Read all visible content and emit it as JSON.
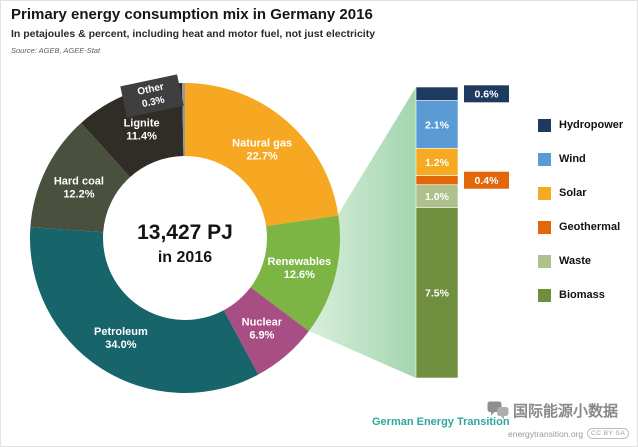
{
  "header": {
    "title": "Primary energy consumption mix in Germany 2016",
    "subtitle": "In petajoules & percent, including heat and motor fuel, not just electricity",
    "source": "Source: AGEB, AGEE-Stat"
  },
  "chart_data": {
    "type": "pie",
    "variant": "donut-with-breakout-bar",
    "title": "Primary energy consumption mix in Germany 2016",
    "center_label": {
      "value": "13,427 PJ",
      "sub": "in 2016"
    },
    "beam": {
      "from": "#d9efdc",
      "to": "#a3d5ae"
    },
    "donut": {
      "unit": "%",
      "slices": [
        {
          "label": "Natural gas",
          "value": 22.7,
          "color": "#F7A823"
        },
        {
          "label": "Renewables",
          "value": 12.6,
          "color": "#7CB544"
        },
        {
          "label": "Nuclear",
          "value": 6.9,
          "color": "#A84E85"
        },
        {
          "label": "Petroleum",
          "value": 34.0,
          "color": "#17646A"
        },
        {
          "label": "Hard coal",
          "value": 12.2,
          "color": "#49503E"
        },
        {
          "label": "Lignite",
          "value": 11.4,
          "color": "#302C26"
        },
        {
          "label": "Other",
          "value": 0.3,
          "color": "#999999",
          "callout": true
        }
      ]
    },
    "breakout": {
      "parent": "Renewables",
      "segments": [
        {
          "label": "Hydropower",
          "value": 0.6,
          "color": "#1E3A5F",
          "callout": true
        },
        {
          "label": "Wind",
          "value": 2.1,
          "color": "#5B9BD5"
        },
        {
          "label": "Solar",
          "value": 1.2,
          "color": "#F6A921"
        },
        {
          "label": "Geothermal",
          "value": 0.4,
          "color": "#E2660A",
          "callout": true
        },
        {
          "label": "Waste",
          "value": 1.0,
          "color": "#AEC08C"
        },
        {
          "label": "Biomass",
          "value": 7.5,
          "color": "#6F8F3E"
        }
      ]
    }
  },
  "legend": {
    "items": [
      {
        "label": "Hydropower",
        "color": "#1E3A5F"
      },
      {
        "label": "Wind",
        "color": "#5B9BD5"
      },
      {
        "label": "Solar",
        "color": "#F6A921"
      },
      {
        "label": "Geothermal",
        "color": "#E2660A"
      },
      {
        "label": "Waste",
        "color": "#AEC08C"
      },
      {
        "label": "Biomass",
        "color": "#6F8F3E"
      }
    ]
  },
  "footer": {
    "brand": "German Energy Transition",
    "website": "energytransition.org",
    "license": "CC BY SA",
    "watermark": "国际能源小数据"
  }
}
